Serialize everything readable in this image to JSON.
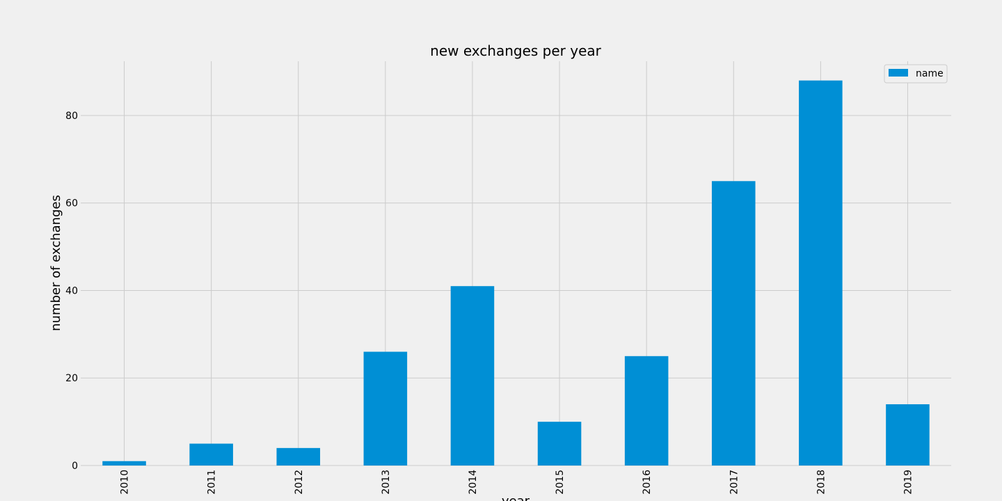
{
  "chart_data": {
    "type": "bar",
    "title": "new exchanges per year",
    "xlabel": "year",
    "ylabel": "number of exchanges",
    "categories": [
      "2010",
      "2011",
      "2012",
      "2013",
      "2014",
      "2015",
      "2016",
      "2017",
      "2018",
      "2019"
    ],
    "series": [
      {
        "name": "name",
        "values": [
          1,
          5,
          4,
          26,
          41,
          10,
          25,
          65,
          88,
          14
        ],
        "color": "#008fd5"
      }
    ],
    "ylim": [
      0,
      92.4
    ],
    "yticks": [
      0,
      20,
      40,
      60,
      80
    ],
    "grid": true,
    "legend": "top-right",
    "background": "#f0f0f0",
    "grid_color": "#cbcbcb"
  }
}
